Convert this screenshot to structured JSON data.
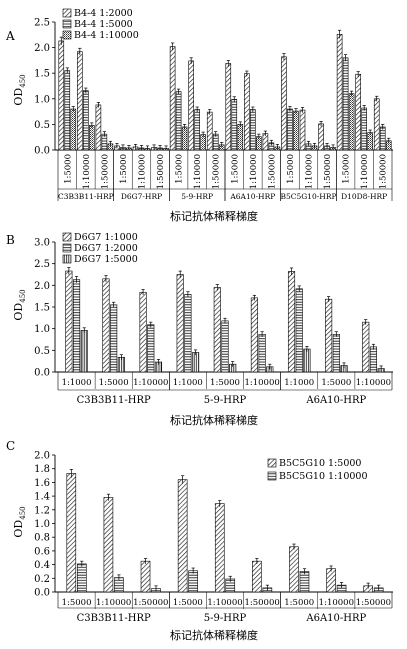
{
  "chart_data": [
    {
      "panel": "A",
      "type": "bar",
      "ylabel": "OD",
      "ylabel_sub": "450",
      "xlabel": "标记抗体稀释梯度",
      "ylim": [
        0,
        2.5
      ],
      "yticks": [
        "0.0",
        "0.5",
        "1.0",
        "1.5",
        "2.0",
        "2.5"
      ],
      "groups": [
        "C3B3B11-HRP",
        "D6G7-HRP",
        "5-9-HRP",
        "A6A10-HRP",
        "B5C5G10-HRP",
        "D10D8-HRP"
      ],
      "dilutions": [
        "1:5000",
        "1:10000",
        "1:50000"
      ],
      "legend_position": "top-left",
      "series": [
        {
          "name": "B4-4 1:2000",
          "pattern": "diag",
          "values": [
            2.13,
            1.92,
            0.88,
            0.08,
            0.06,
            0.05,
            2.02,
            1.74,
            0.74,
            1.69,
            1.49,
            0.32,
            1.82,
            0.78,
            0.51,
            2.26,
            1.48,
            1.0
          ]
        },
        {
          "name": "B4-4 1:5000",
          "pattern": "hlines",
          "values": [
            1.55,
            1.16,
            0.31,
            0.05,
            0.04,
            0.04,
            1.14,
            0.79,
            0.31,
            0.99,
            0.79,
            0.14,
            0.8,
            0.12,
            0.08,
            1.8,
            0.82,
            0.45
          ]
        },
        {
          "name": "B4-4 1:10000",
          "pattern": "dots",
          "values": [
            0.8,
            0.48,
            0.12,
            0.04,
            0.03,
            0.03,
            0.45,
            0.3,
            0.1,
            0.5,
            0.26,
            0.06,
            0.76,
            0.08,
            0.05,
            1.1,
            0.34,
            0.18
          ]
        }
      ]
    },
    {
      "panel": "B",
      "type": "bar",
      "ylabel": "OD",
      "ylabel_sub": "450",
      "xlabel": "标记抗体稀释梯度",
      "ylim": [
        0,
        3.0
      ],
      "yticks": [
        "0.0",
        "0.5",
        "1.0",
        "1.5",
        "2.0",
        "2.5",
        "3.0"
      ],
      "groups": [
        "C3B3B11-HRP",
        "5-9-HRP",
        "A6A10-HRP"
      ],
      "dilutions": [
        "1:1000",
        "1:5000",
        "1:10000"
      ],
      "legend_position": "top-left",
      "series": [
        {
          "name": "D6G7 1:1000",
          "pattern": "diag",
          "values": [
            2.33,
            2.15,
            1.84,
            2.25,
            1.95,
            1.71,
            2.32,
            1.68,
            1.15
          ]
        },
        {
          "name": "D6G7 1:2000",
          "pattern": "hlines",
          "values": [
            2.13,
            1.55,
            1.09,
            1.79,
            1.18,
            0.87,
            1.92,
            0.87,
            0.58
          ]
        },
        {
          "name": "D6G7 1:5000",
          "pattern": "vlines",
          "values": [
            0.96,
            0.34,
            0.23,
            0.45,
            0.18,
            0.12,
            0.53,
            0.15,
            0.08
          ]
        }
      ]
    },
    {
      "panel": "C",
      "type": "bar",
      "ylabel": "OD",
      "ylabel_sub": "450",
      "xlabel": "标记抗体稀释梯度",
      "ylim": [
        0,
        2.0
      ],
      "yticks": [
        "0.0",
        "0.2",
        "0.4",
        "0.6",
        "0.8",
        "1.0",
        "1.2",
        "1.4",
        "1.6",
        "1.8",
        "2.0"
      ],
      "groups": [
        "C3B3B11-HRP",
        "5-9-HRP",
        "A6A10-HRP"
      ],
      "dilutions": [
        "1:5000",
        "1:10000",
        "1:50000"
      ],
      "legend_position": "top-right",
      "series": [
        {
          "name": "B5C5G10 1:5000",
          "pattern": "diag",
          "values": [
            1.73,
            1.38,
            0.45,
            1.64,
            1.29,
            0.45,
            0.66,
            0.34,
            0.09
          ]
        },
        {
          "name": "B5C5G10 1:10000",
          "pattern": "hlines",
          "values": [
            0.41,
            0.21,
            0.05,
            0.31,
            0.19,
            0.06,
            0.3,
            0.1,
            0.06
          ]
        }
      ]
    }
  ]
}
